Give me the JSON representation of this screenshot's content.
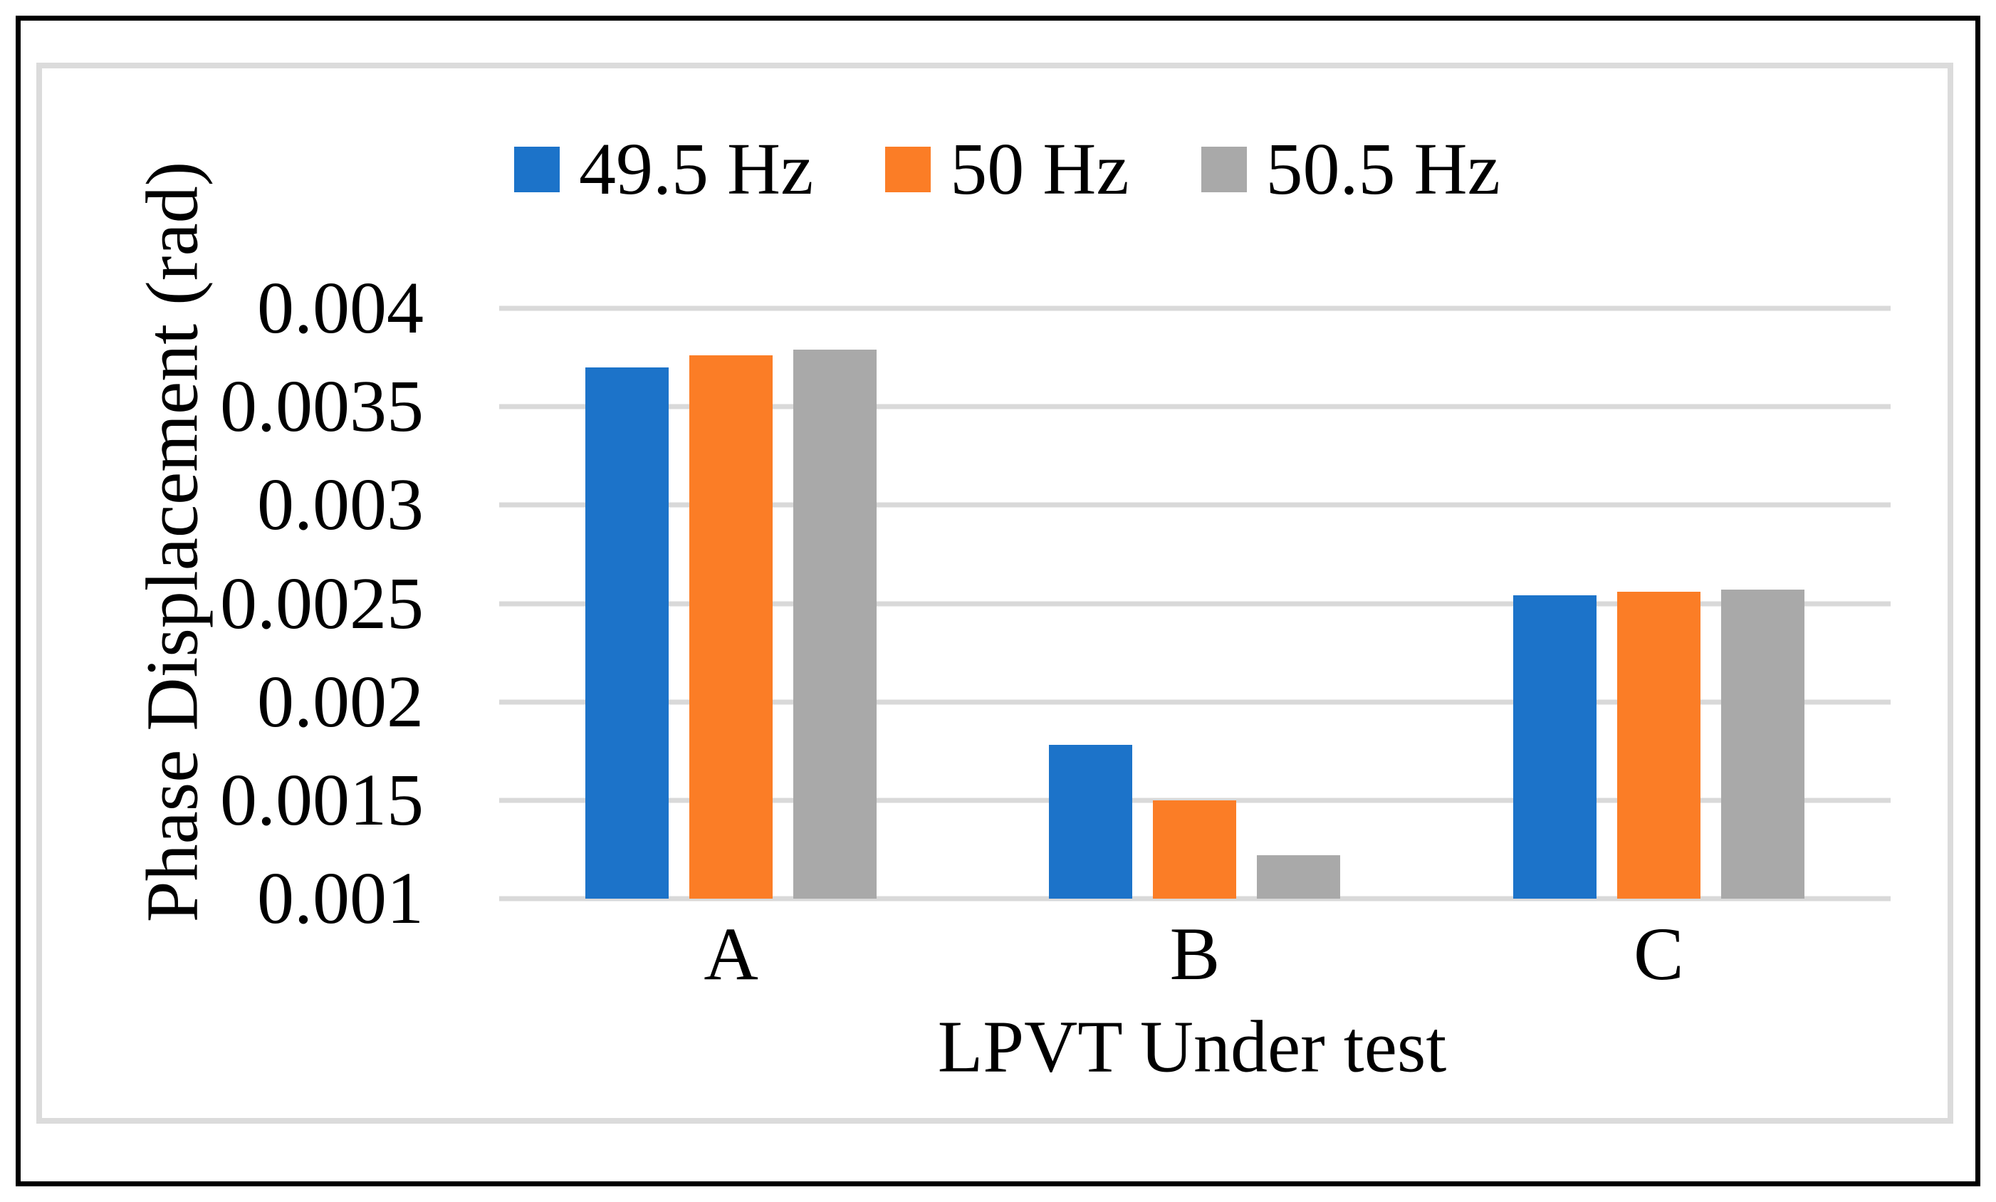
{
  "figure": {
    "frame_color": "#000000",
    "panel_border_color": "#dbdbdb",
    "background": "#ffffff",
    "text_color": "#000000"
  },
  "chart_data": {
    "type": "bar",
    "title": "",
    "categories": [
      "A",
      "B",
      "C"
    ],
    "series": [
      {
        "name": "49.5 Hz",
        "color": "#1c73c9",
        "values": [
          0.0037,
          0.00178,
          0.00254
        ]
      },
      {
        "name": "50 Hz",
        "color": "#fb7d26",
        "values": [
          0.00376,
          0.0015,
          0.00256
        ]
      },
      {
        "name": "50.5 Hz",
        "color": "#a9a9a9",
        "values": [
          0.00379,
          0.00122,
          0.00257
        ]
      }
    ],
    "xlabel": "LPVT Under test",
    "ylabel": "Phase Displacement (rad)",
    "ylim": [
      0.001,
      0.004
    ],
    "y_ticks": [
      0.004,
      0.0035,
      0.003,
      0.0025,
      0.002,
      0.0015,
      0.001
    ],
    "y_tick_labels": [
      "0.004",
      "0.0035",
      "0.003",
      "0.0025",
      "0.002",
      "0.0015",
      "0.001"
    ],
    "grid": "horizontal",
    "gridline_color": "#d9d9d9",
    "legend_position": "top",
    "bars_baseline": 0.001
  }
}
